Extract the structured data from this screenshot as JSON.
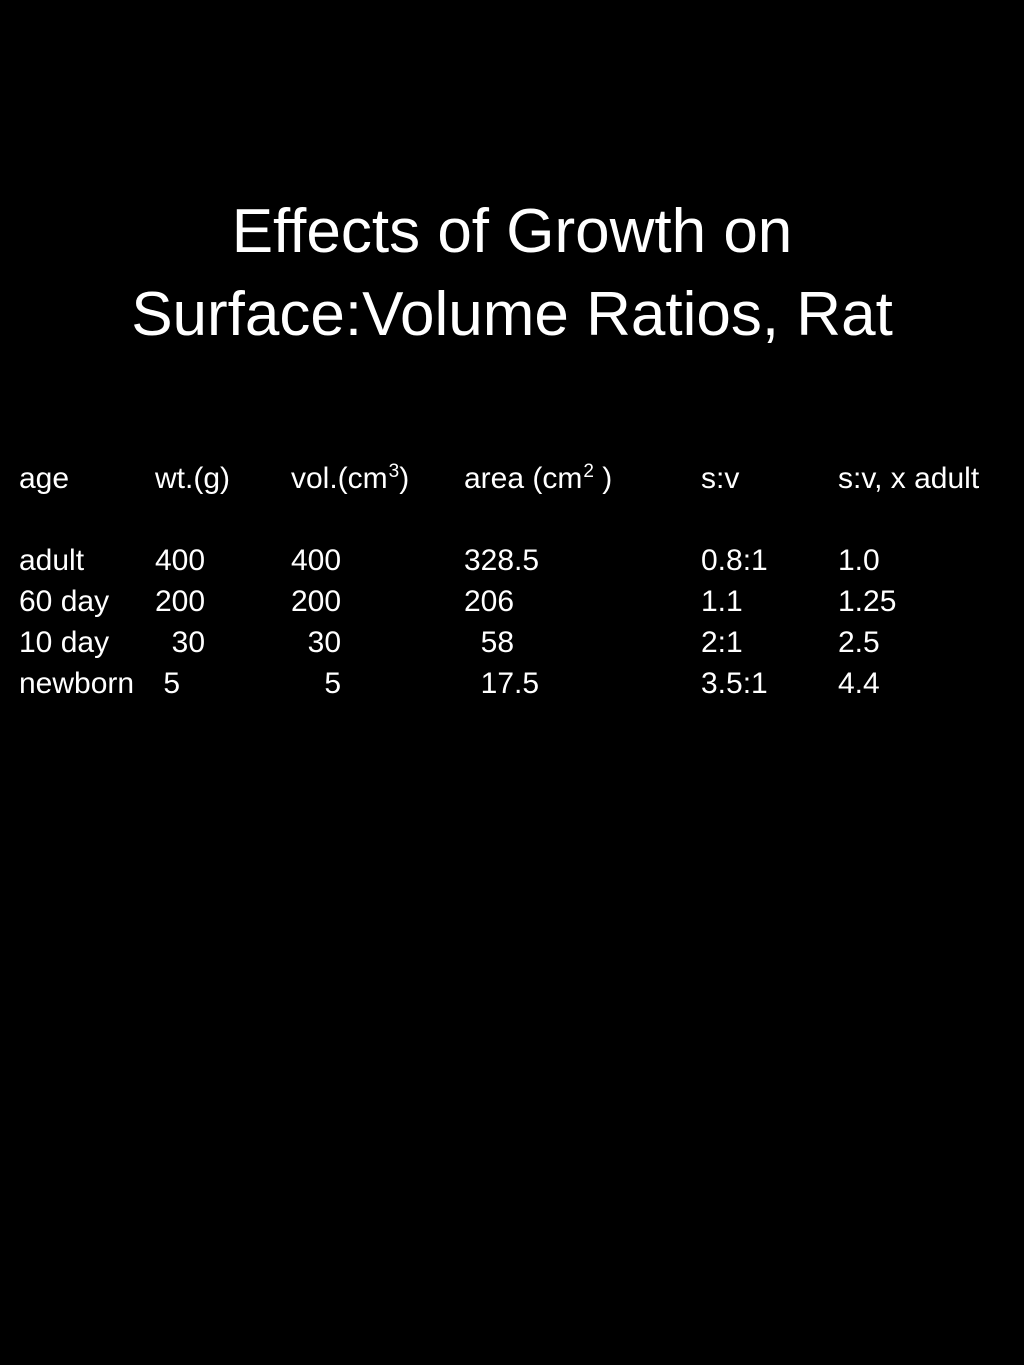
{
  "slide": {
    "title_line1": "Effects of Growth on",
    "title_line2": "Surface:Volume Ratios, Rat"
  },
  "table": {
    "headers": {
      "age": "age",
      "weight": "wt.(g)",
      "volume_pre": "vol.(cm",
      "volume_sup": "3",
      "volume_post": ")",
      "area_pre": "area (cm",
      "area_sup": "2",
      "area_post": " )",
      "sv": "s:v",
      "sv_adult": "s:v, x adult"
    },
    "rows": [
      {
        "age": "adult",
        "weight": "400",
        "volume": "400",
        "area": "328.5",
        "sv": "0.8:1",
        "sv_adult": "1.0"
      },
      {
        "age": "60 day",
        "weight": "200",
        "volume": "200",
        "area": "206",
        "sv": "1.1",
        "sv_adult": "1.25"
      },
      {
        "age": "10 day",
        "weight": "  30",
        "volume": "  30",
        "area": "  58",
        "sv": "2:1",
        "sv_adult": "2.5"
      },
      {
        "age": "newborn",
        "weight": " 5",
        "volume": "    5",
        "area": "  17.5",
        "sv": "3.5:1",
        "sv_adult": "4.4"
      }
    ]
  }
}
